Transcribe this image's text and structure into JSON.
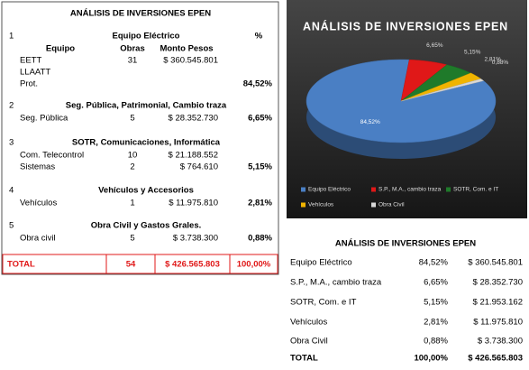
{
  "left_table": {
    "title": "ANÁLISIS DE INVERSIONES EPEN",
    "percent_header": "%",
    "columns": [
      "Equipo",
      "Obras",
      "Monto Pesos"
    ],
    "sections": [
      {
        "number": "1",
        "heading": "Equipo Eléctrico",
        "rows": [
          [
            "EETT",
            "31",
            "$ 360.545.801"
          ],
          [
            "LLAATT"
          ],
          [
            "Prot."
          ]
        ],
        "percent": "84,52%"
      },
      {
        "number": "2",
        "heading": "Seg. Pública, Patrimonial, Cambio traza",
        "rows": [
          [
            "Seg. Pública",
            "5",
            "$ 28.352.730"
          ]
        ],
        "percent": "6,65%"
      },
      {
        "number": "3",
        "heading": "SOTR, Comunicaciones, Informática",
        "rows": [
          [
            "Com.  Telecontrol",
            "10",
            "$ 21.188.552"
          ],
          [
            "Sistemas",
            "2",
            "$ 764.610"
          ]
        ],
        "percent": "5,15%"
      },
      {
        "number": "4",
        "heading": "Vehículos y Accesorios",
        "rows": [
          [
            "Vehículos",
            "1",
            "$ 11.975.810"
          ]
        ],
        "percent": "2,81%"
      },
      {
        "number": "5",
        "heading": "Obra Civil y Gastos Grales.",
        "rows": [
          [
            "Obra civil",
            "5",
            "$ 3.738.300"
          ]
        ],
        "percent": "0,88%"
      }
    ],
    "total": [
      "TOTAL",
      "54",
      "$ 426.565.803",
      "100,00%"
    ]
  },
  "pie_chart": {
    "type": "pie",
    "title": "ANÁLISIS DE INVERSIONES  EPEN",
    "categories": [
      "Equipo Eléctrico",
      "S.P., M.A., cambio traza",
      "SOTR, Com. e IT",
      "Vehículos",
      "Obra Civil"
    ],
    "values": [
      84.52,
      6.65,
      5.15,
      2.81,
      0.88
    ],
    "value_labels": [
      "84,52%",
      "6,65%",
      "5,15%",
      "2,81%",
      "0,88%"
    ],
    "colors": [
      "#4a7fc4",
      "#e01818",
      "#1f7a2a",
      "#f0b400",
      "#d8d8d8"
    ]
  },
  "right_table": {
    "title": "ANÁLISIS DE INVERSIONES EPEN",
    "rows": [
      [
        "Equipo Eléctrico",
        "84,52%",
        "$ 360.545.801"
      ],
      [
        "S.P., M.A., cambio traza",
        "6,65%",
        "$ 28.352.730"
      ],
      [
        "SOTR, Com. e IT",
        "5,15%",
        "$ 21.953.162"
      ],
      [
        "Vehículos",
        "2,81%",
        "$ 11.975.810"
      ],
      [
        "Obra Civil",
        "0,88%",
        "$ 3.738.300"
      ]
    ],
    "total": [
      "TOTAL",
      "100,00%",
      "$ 426.565.803"
    ]
  }
}
